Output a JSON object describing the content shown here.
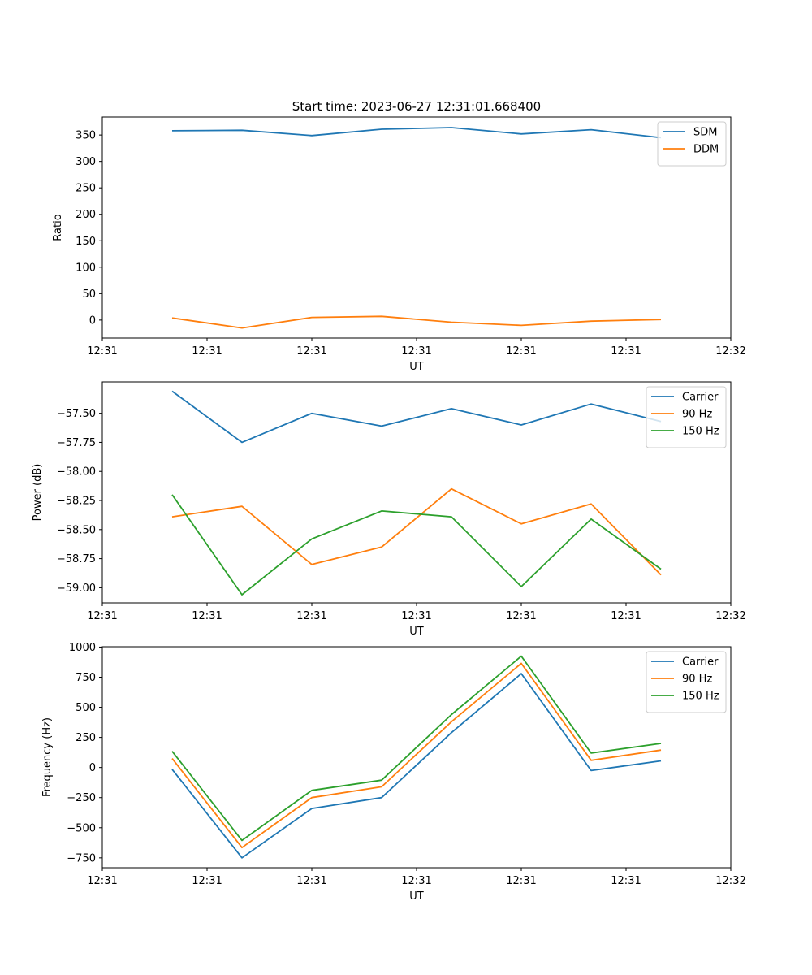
{
  "figure": {
    "title": "Start time: 2023-06-27 12:31:01.668400"
  },
  "chart_data": [
    {
      "type": "line",
      "title": "Start time: 2023-06-27 12:31:01.668400",
      "xlabel": "UT",
      "ylabel": "Ratio",
      "x": [
        1,
        2,
        3,
        4,
        5,
        6,
        7,
        8
      ],
      "xlim": [
        0,
        9
      ],
      "ylim": [
        -34,
        384
      ],
      "xticks": [
        0,
        1.5,
        3,
        4.5,
        6,
        7.5,
        9
      ],
      "xtick_labels": [
        "12:31",
        "12:31",
        "12:31",
        "12:31",
        "12:31",
        "12:31",
        "12:32"
      ],
      "yticks": [
        0,
        50,
        100,
        150,
        200,
        250,
        300,
        350
      ],
      "ytick_labels": [
        "0",
        "50",
        "100",
        "150",
        "200",
        "250",
        "300",
        "350"
      ],
      "legend_position": "top-right",
      "series": [
        {
          "name": "SDM",
          "color": "#1f77b4",
          "values": [
            358,
            359,
            349,
            361,
            364,
            352,
            360,
            345
          ]
        },
        {
          "name": "DDM",
          "color": "#ff7f0e",
          "values": [
            4,
            -15,
            5,
            7,
            -4,
            -10,
            -2,
            1
          ]
        }
      ]
    },
    {
      "type": "line",
      "title": "",
      "xlabel": "UT",
      "ylabel": "Power (dB)",
      "x": [
        1,
        2,
        3,
        4,
        5,
        6,
        7,
        8
      ],
      "xlim": [
        0,
        9
      ],
      "ylim": [
        -59.13,
        -57.23
      ],
      "xticks": [
        0,
        1.5,
        3,
        4.5,
        6,
        7.5,
        9
      ],
      "xtick_labels": [
        "12:31",
        "12:31",
        "12:31",
        "12:31",
        "12:31",
        "12:31",
        "12:32"
      ],
      "yticks": [
        -59.0,
        -58.75,
        -58.5,
        -58.25,
        -58.0,
        -57.75,
        -57.5
      ],
      "ytick_labels": [
        "−59.00",
        "−58.75",
        "−58.50",
        "−58.25",
        "−58.00",
        "−57.75",
        "−57.50"
      ],
      "legend_position": "top-right",
      "series": [
        {
          "name": "Carrier",
          "color": "#1f77b4",
          "values": [
            -57.31,
            -57.75,
            -57.5,
            -57.61,
            -57.46,
            -57.6,
            -57.42,
            -57.57
          ]
        },
        {
          "name": "90 Hz",
          "color": "#ff7f0e",
          "values": [
            -58.39,
            -58.3,
            -58.8,
            -58.65,
            -58.15,
            -58.45,
            -58.28,
            -58.89
          ]
        },
        {
          "name": "150 Hz",
          "color": "#2ca02c",
          "values": [
            -58.2,
            -59.06,
            -58.58,
            -58.34,
            -58.39,
            -58.99,
            -58.41,
            -58.84
          ]
        }
      ]
    },
    {
      "type": "line",
      "title": "",
      "xlabel": "UT",
      "ylabel": "Frequency (Hz)",
      "x": [
        1,
        2,
        3,
        4,
        5,
        6,
        7,
        8
      ],
      "xlim": [
        0,
        9
      ],
      "ylim": [
        -832,
        1003
      ],
      "xticks": [
        0,
        1.5,
        3,
        4.5,
        6,
        7.5,
        9
      ],
      "xtick_labels": [
        "12:31",
        "12:31",
        "12:31",
        "12:31",
        "12:31",
        "12:31",
        "12:32"
      ],
      "yticks": [
        -750,
        -500,
        -250,
        0,
        250,
        500,
        750,
        1000
      ],
      "ytick_labels": [
        "−750",
        "−500",
        "−250",
        "0",
        "250",
        "500",
        "750",
        "1000"
      ],
      "legend_position": "top-right",
      "series": [
        {
          "name": "Carrier",
          "color": "#1f77b4",
          "values": [
            -15,
            -750,
            -340,
            -250,
            290,
            780,
            -25,
            55
          ]
        },
        {
          "name": "90 Hz",
          "color": "#ff7f0e",
          "values": [
            75,
            -665,
            -250,
            -160,
            380,
            865,
            60,
            145
          ]
        },
        {
          "name": "150 Hz",
          "color": "#2ca02c",
          "values": [
            135,
            -605,
            -190,
            -105,
            440,
            925,
            120,
            200
          ]
        }
      ]
    }
  ]
}
